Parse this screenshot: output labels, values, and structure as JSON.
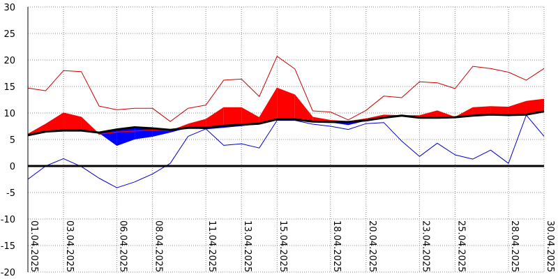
{
  "chart_data": {
    "type": "line",
    "x": [
      "01.04.2025",
      "02.04.2025",
      "03.04.2025",
      "04.04.2025",
      "05.04.2025",
      "06.04.2025",
      "07.04.2025",
      "08.04.2025",
      "09.04.2025",
      "10.04.2025",
      "11.04.2025",
      "12.04.2025",
      "13.04.2025",
      "14.04.2025",
      "15.04.2025",
      "16.04.2025",
      "17.04.2025",
      "18.04.2025",
      "19.04.2025",
      "20.04.2025",
      "21.04.2025",
      "22.04.2025",
      "23.04.2025",
      "24.04.2025",
      "25.04.2025",
      "26.04.2025",
      "27.04.2025",
      "28.04.2025",
      "29.04.2025",
      "30.04.2025"
    ],
    "x_tick_labels": [
      "01.04.2025",
      "03.04.2025",
      "06.04.2025",
      "08.04.2025",
      "11.04.2025",
      "13.04.2025",
      "15.04.2025",
      "18.04.2025",
      "20.04.2025",
      "23.04.2025",
      "25.04.2025",
      "28.04.2025",
      "30.04.2025"
    ],
    "y_ticks": [
      30,
      25,
      20,
      15,
      10,
      5,
      0,
      -5,
      -10,
      -15,
      -20
    ],
    "ylim": [
      -20,
      30
    ],
    "grid": true,
    "series": [
      {
        "color": "#cc0000",
        "values": [
          14.7,
          14.2,
          18.0,
          17.8,
          11.3,
          10.6,
          10.9,
          10.9,
          8.4,
          10.9,
          11.5,
          16.2,
          16.4,
          13.1,
          20.7,
          18.3,
          10.4,
          10.2,
          8.7,
          10.5,
          13.2,
          12.9,
          15.9,
          15.7,
          14.6,
          18.8,
          18.4,
          17.7,
          16.2,
          18.4
        ]
      },
      {
        "color": "#ff0000",
        "values": [
          6.0,
          7.9,
          10.0,
          9.2,
          6.0,
          6.4,
          6.6,
          6.8,
          6.6,
          7.9,
          8.8,
          11.0,
          11.0,
          9.1,
          14.7,
          13.4,
          9.2,
          8.6,
          8.4,
          8.9,
          9.6,
          9.5,
          9.5,
          10.4,
          9.2,
          11.0,
          11.2,
          11.1,
          12.2,
          12.6
        ]
      },
      {
        "color": "#0000ff",
        "values": [
          5.8,
          6.6,
          6.8,
          6.7,
          6.3,
          3.9,
          5.1,
          5.6,
          6.4,
          7.3,
          7.0,
          7.3,
          7.6,
          8.0,
          8.8,
          8.8,
          8.4,
          8.3,
          7.8,
          8.6,
          9.1,
          9.5,
          9.1,
          9.1,
          9.2,
          9.5,
          9.7,
          9.6,
          9.7,
          10.3
        ]
      },
      {
        "color": "#0000cc",
        "values": [
          -2.5,
          0.0,
          1.4,
          -0.1,
          -2.3,
          -4.1,
          -3.0,
          -1.5,
          0.5,
          5.6,
          7.0,
          3.9,
          4.2,
          3.4,
          8.6,
          8.6,
          7.9,
          7.5,
          6.9,
          8.0,
          8.2,
          4.7,
          1.8,
          4.3,
          2.1,
          1.3,
          3.0,
          0.5,
          9.6,
          5.6
        ]
      },
      {
        "color": "#000000",
        "values": [
          5.8,
          6.5,
          6.7,
          6.7,
          6.3,
          6.9,
          7.3,
          7.1,
          6.8,
          7.2,
          7.2,
          7.6,
          7.8,
          8.0,
          8.8,
          8.8,
          8.4,
          8.3,
          8.3,
          8.6,
          9.1,
          9.5,
          9.1,
          9.1,
          9.2,
          9.5,
          9.7,
          9.6,
          9.7,
          10.3
        ]
      }
    ]
  }
}
